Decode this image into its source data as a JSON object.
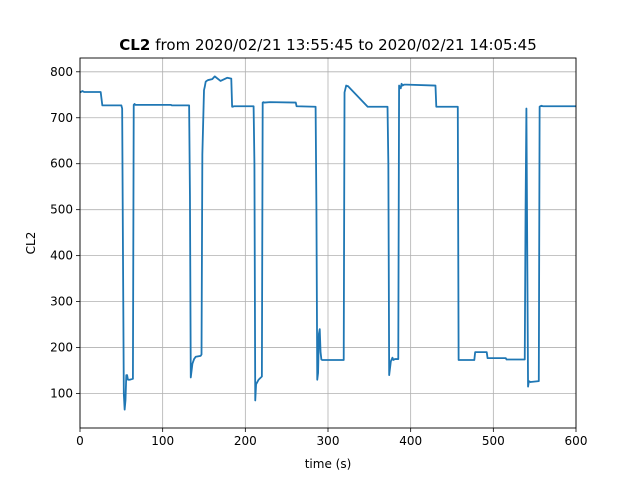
{
  "chart_data": {
    "type": "line",
    "title_bold": "CL2",
    "title_rest": "from 2020/02/21 13:55:45 to 2020/02/21 14:05:45",
    "xlabel": "time (s)",
    "ylabel": "CL2",
    "xlim": [
      0,
      600
    ],
    "ylim": [
      25,
      830
    ],
    "grid": true,
    "xticks": [
      0,
      100,
      200,
      300,
      400,
      500,
      600
    ],
    "yticks": [
      100,
      200,
      300,
      400,
      500,
      600,
      700,
      800
    ],
    "line_color": "#1f77b4",
    "series": [
      {
        "x": [
          0,
          3,
          5,
          25,
          27,
          50,
          51,
          52,
          53,
          54,
          55,
          56,
          57,
          58,
          60,
          64,
          65,
          66,
          67,
          110,
          111,
          132,
          133,
          134,
          136,
          138,
          140,
          146,
          147,
          148,
          150,
          151,
          152,
          153,
          155,
          160,
          163,
          170,
          178,
          183,
          184,
          185,
          186,
          210,
          211,
          212,
          213,
          216,
          220,
          221,
          222,
          223,
          230,
          261,
          262,
          285,
          286,
          287,
          288,
          289,
          290,
          291,
          292,
          293,
          300,
          319,
          320,
          322,
          323,
          324,
          348,
          349,
          372,
          373,
          374,
          376,
          378,
          379,
          381,
          385,
          386,
          388,
          389,
          390,
          392,
          395,
          430,
          431,
          457,
          458,
          477,
          478,
          492,
          493,
          515,
          516,
          538,
          539,
          540,
          542,
          543,
          545,
          555,
          556,
          558,
          560,
          600
        ],
        "y": [
          755,
          758,
          756,
          756,
          727,
          727,
          720,
          400,
          100,
          65,
          85,
          140,
          140,
          130,
          130,
          132,
          728,
          730,
          728,
          728,
          727,
          727,
          530,
          135,
          165,
          175,
          180,
          182,
          185,
          620,
          760,
          768,
          778,
          780,
          782,
          784,
          790,
          780,
          787,
          785,
          724,
          724,
          725,
          725,
          600,
          85,
          120,
          130,
          137,
          733,
          734,
          733,
          734,
          733,
          725,
          724,
          500,
          130,
          145,
          230,
          240,
          190,
          174,
          173,
          173,
          173,
          755,
          770,
          769,
          769,
          724,
          724,
          724,
          600,
          140,
          170,
          178,
          173,
          175,
          175,
          770,
          764,
          774,
          770,
          772,
          772,
          770,
          724,
          724,
          173,
          173,
          190,
          190,
          177,
          177,
          174,
          174,
          500,
          720,
          115,
          127,
          125,
          127,
          724,
          726,
          725,
          725
        ]
      }
    ]
  }
}
